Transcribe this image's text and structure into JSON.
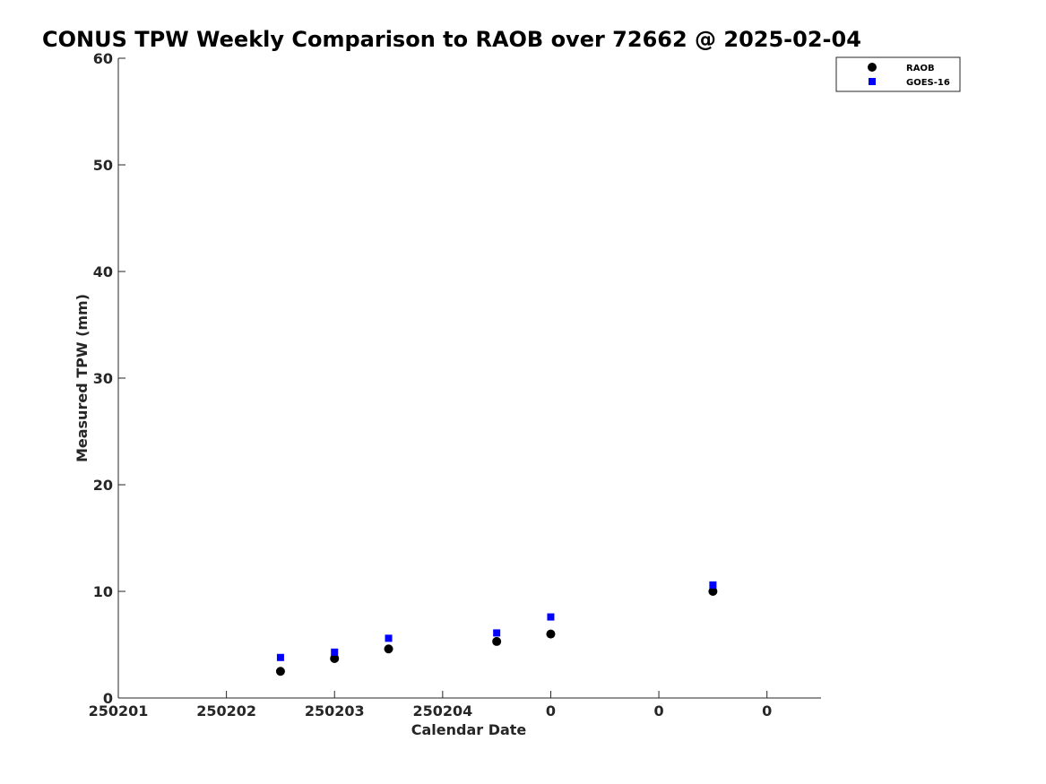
{
  "chart_data": {
    "type": "scatter",
    "title": "CONUS TPW Weekly Comparison to RAOB over 72662 @ 2025-02-04",
    "xlabel": "Calendar Date",
    "ylabel": "Measured TPW (mm)",
    "xlim": [
      1,
      7.5
    ],
    "ylim": [
      0,
      60
    ],
    "x_ticks": [
      1,
      2,
      3,
      4,
      5,
      6,
      7
    ],
    "x_tick_labels": [
      "250201",
      "250202",
      "250203",
      "250204",
      "0",
      "0",
      "0"
    ],
    "y_ticks": [
      0,
      10,
      20,
      30,
      40,
      50,
      60
    ],
    "y_tick_labels": [
      "0",
      "10",
      "20",
      "30",
      "40",
      "50",
      "60"
    ],
    "grid": false,
    "legend_position": "top-right",
    "series": [
      {
        "name": "RAOB",
        "marker": "circle",
        "color": "#000000",
        "x": [
          2.5,
          3.0,
          3.5,
          4.5,
          5.0,
          6.5
        ],
        "y": [
          2.5,
          3.7,
          4.6,
          5.3,
          6.0,
          10.0
        ]
      },
      {
        "name": "GOES-16",
        "marker": "square",
        "color": "#0000ff",
        "x": [
          2.5,
          3.0,
          3.5,
          4.5,
          5.0,
          6.5
        ],
        "y": [
          3.8,
          4.3,
          5.6,
          6.1,
          7.6,
          10.6
        ]
      }
    ]
  }
}
